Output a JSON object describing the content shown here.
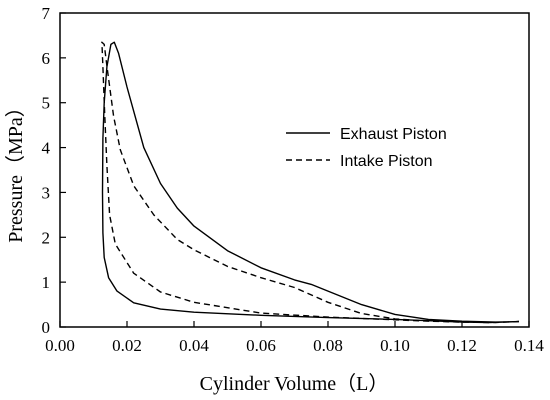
{
  "chart_data": {
    "type": "line",
    "title": "",
    "xlabel": "Cylinder Volume（L）",
    "ylabel": "Pressure（MPa）",
    "xlim": [
      0.0,
      0.14
    ],
    "ylim": [
      0,
      7
    ],
    "xticks": [
      "0.00",
      "0.02",
      "0.04",
      "0.06",
      "0.08",
      "0.10",
      "0.12",
      "0.14"
    ],
    "yticks": [
      "0",
      "1",
      "2",
      "3",
      "4",
      "5",
      "6",
      "7"
    ],
    "grid": false,
    "legend_position": "upper-right",
    "series": [
      {
        "name": "Exhaust Piston",
        "style": "solid",
        "color": "#000000",
        "points": [
          [
            0.137,
            0.12
          ],
          [
            0.128,
            0.1
          ],
          [
            0.12,
            0.11
          ],
          [
            0.11,
            0.14
          ],
          [
            0.1,
            0.17
          ],
          [
            0.08,
            0.21
          ],
          [
            0.06,
            0.26
          ],
          [
            0.04,
            0.33
          ],
          [
            0.03,
            0.4
          ],
          [
            0.022,
            0.54
          ],
          [
            0.017,
            0.8
          ],
          [
            0.0145,
            1.1
          ],
          [
            0.0132,
            1.55
          ],
          [
            0.0128,
            2.1
          ],
          [
            0.0127,
            3.0
          ],
          [
            0.0128,
            4.2
          ],
          [
            0.0132,
            5.0
          ],
          [
            0.014,
            5.8
          ],
          [
            0.0152,
            6.3
          ],
          [
            0.0162,
            6.35
          ],
          [
            0.0175,
            6.1
          ],
          [
            0.02,
            5.35
          ],
          [
            0.025,
            4.0
          ],
          [
            0.03,
            3.2
          ],
          [
            0.035,
            2.65
          ],
          [
            0.04,
            2.25
          ],
          [
            0.05,
            1.7
          ],
          [
            0.06,
            1.32
          ],
          [
            0.07,
            1.05
          ],
          [
            0.075,
            0.95
          ],
          [
            0.08,
            0.8
          ],
          [
            0.09,
            0.5
          ],
          [
            0.1,
            0.28
          ],
          [
            0.11,
            0.17
          ],
          [
            0.12,
            0.13
          ],
          [
            0.13,
            0.11
          ],
          [
            0.137,
            0.12
          ]
        ]
      },
      {
        "name": "Intake Piston",
        "style": "dashed",
        "color": "#000000",
        "points": [
          [
            0.137,
            0.12
          ],
          [
            0.128,
            0.1
          ],
          [
            0.12,
            0.11
          ],
          [
            0.11,
            0.13
          ],
          [
            0.1,
            0.16
          ],
          [
            0.08,
            0.22
          ],
          [
            0.06,
            0.31
          ],
          [
            0.04,
            0.55
          ],
          [
            0.03,
            0.78
          ],
          [
            0.022,
            1.2
          ],
          [
            0.0165,
            1.85
          ],
          [
            0.0148,
            2.5
          ],
          [
            0.014,
            3.6
          ],
          [
            0.0133,
            4.8
          ],
          [
            0.0128,
            5.8
          ],
          [
            0.0125,
            6.35
          ],
          [
            0.0132,
            6.3
          ],
          [
            0.0142,
            5.7
          ],
          [
            0.016,
            4.7
          ],
          [
            0.018,
            3.95
          ],
          [
            0.022,
            3.15
          ],
          [
            0.028,
            2.5
          ],
          [
            0.035,
            1.95
          ],
          [
            0.04,
            1.72
          ],
          [
            0.05,
            1.35
          ],
          [
            0.06,
            1.1
          ],
          [
            0.07,
            0.88
          ],
          [
            0.08,
            0.55
          ],
          [
            0.09,
            0.3
          ],
          [
            0.1,
            0.18
          ],
          [
            0.11,
            0.13
          ],
          [
            0.12,
            0.11
          ],
          [
            0.13,
            0.1
          ],
          [
            0.137,
            0.12
          ]
        ]
      }
    ]
  }
}
